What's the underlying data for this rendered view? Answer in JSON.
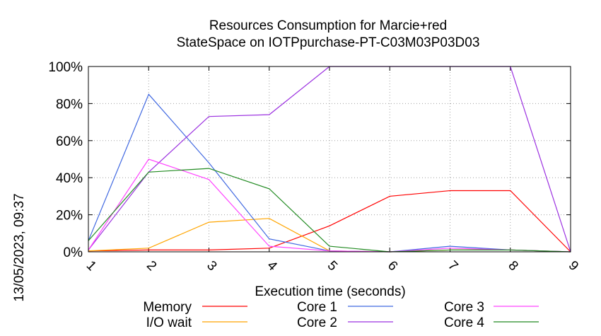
{
  "chart_data": {
    "type": "line",
    "title": [
      "Resources Consumption for Marcie+red",
      "StateSpace on IOTPpurchase-PT-C03M03P03D03"
    ],
    "xlabel": "Execution time (seconds)",
    "ylabel": "",
    "side_label": "13/05/2023, 09:37",
    "x": [
      1,
      2,
      3,
      4,
      5,
      6,
      7,
      8,
      9
    ],
    "xlim": [
      1,
      9
    ],
    "ylim": [
      0,
      100
    ],
    "x_ticks": [
      "1",
      "2",
      "3",
      "4",
      "5",
      "6",
      "7",
      "8",
      "9"
    ],
    "y_ticks": [
      {
        "value": 0,
        "label": "0%"
      },
      {
        "value": 20,
        "label": "20%"
      },
      {
        "value": 40,
        "label": "40%"
      },
      {
        "value": 60,
        "label": "60%"
      },
      {
        "value": 80,
        "label": "80%"
      },
      {
        "value": 100,
        "label": "100%"
      }
    ],
    "grid": true,
    "legend_position": "bottom",
    "series": [
      {
        "name": "Memory",
        "color": "#ff0000",
        "values": [
          0.5,
          1,
          1,
          2,
          14,
          30,
          33,
          33,
          0
        ]
      },
      {
        "name": "I/O wait",
        "color": "#ffa500",
        "values": [
          0.5,
          2,
          16,
          18,
          0.5,
          0,
          1,
          1,
          0
        ]
      },
      {
        "name": "Core 1",
        "color": "#4169e1",
        "values": [
          6,
          85,
          48,
          7,
          0.5,
          0,
          3,
          1,
          0
        ]
      },
      {
        "name": "Core 2",
        "color": "#9b30e0",
        "values": [
          1,
          43,
          73,
          74,
          100,
          100,
          100,
          100,
          0
        ]
      },
      {
        "name": "Core 3",
        "color": "#ff44ff",
        "values": [
          1,
          50,
          39,
          3,
          0.5,
          0,
          2,
          1,
          0
        ]
      },
      {
        "name": "Core 4",
        "color": "#228b22",
        "values": [
          6,
          43,
          45,
          34,
          3,
          0,
          1,
          1,
          0
        ]
      }
    ]
  }
}
